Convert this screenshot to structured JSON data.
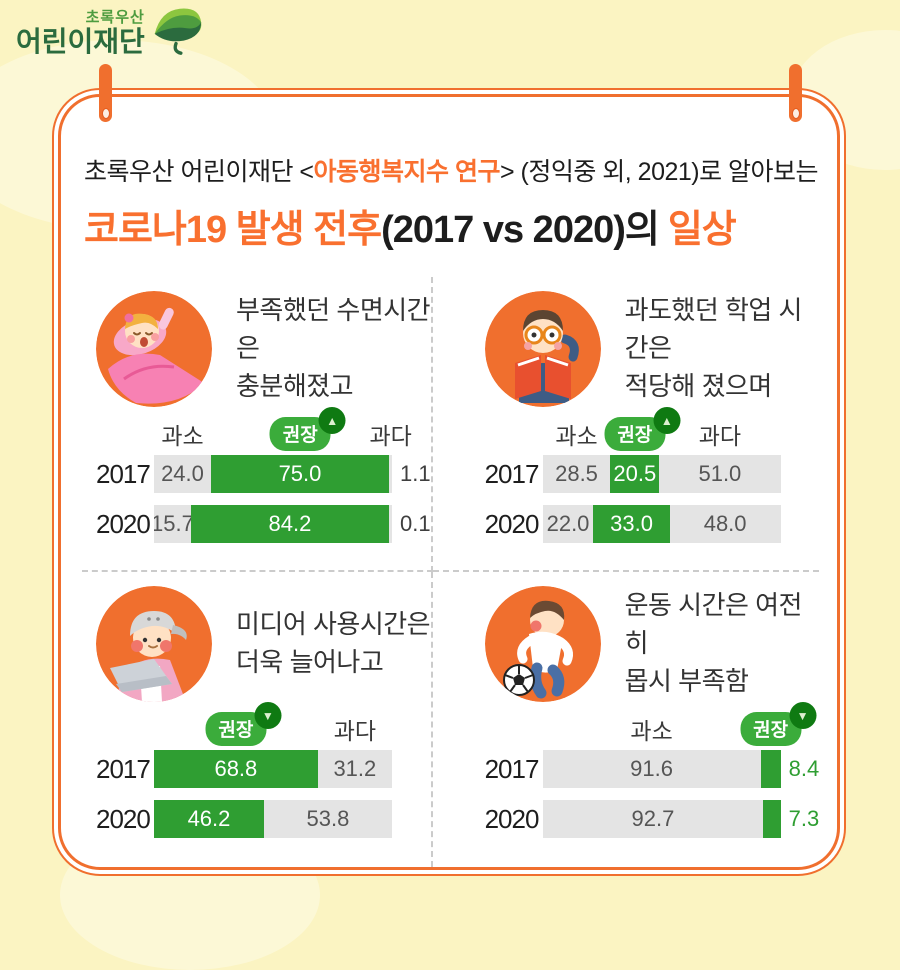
{
  "logo": {
    "line1": "초록우산",
    "line2": "어린이재단",
    "icon": "green-umbrella-leaf-icon"
  },
  "header": {
    "intro_prefix": "초록우산 어린이재단 <",
    "intro_highlight": "아동행복지수 연구",
    "intro_suffix": "> (정익중 외, 2021)로 알아보는",
    "title_part1": "코로나19 발생 전후",
    "title_part2": "(2017 vs 2020)의",
    "title_part3": "일상"
  },
  "colors": {
    "background": "#FBF4C2",
    "accent_orange": "#F06F2E",
    "title_orange": "#F9702F",
    "bar_green": "#2F9E32",
    "badge_green": "#3BAC3B",
    "badge_circle_green": "#0F7A12",
    "bar_gray": "#E4E4E4",
    "logo_green": "#4E9C3F",
    "logo_green_dark": "#2B6B3E"
  },
  "panels": [
    {
      "caption_line1": "부족했던 수면시간은",
      "caption_line2": "충분해졌고",
      "illustration": "sleeping-child-illustration"
    },
    {
      "caption_line1": "과도했던 학업 시간은",
      "caption_line2": "적당해 졌으며",
      "illustration": "reading-child-illustration"
    },
    {
      "caption_line1": "미디어 사용시간은",
      "caption_line2": "더욱 늘어나고",
      "illustration": "laptop-child-illustration"
    },
    {
      "caption_line1": "운동 시간은 여전히",
      "caption_line2": "몹시 부족함",
      "illustration": "soccer-child-illustration"
    }
  ],
  "chart_data": [
    {
      "type": "bar",
      "orientation": "horizontal-stacked",
      "title": "부족했던 수면시간은 충분해졌고",
      "unit": "%",
      "categories": [
        "2017",
        "2020"
      ],
      "series": [
        {
          "name": "과소",
          "color_role": "gray",
          "values": [
            24.0,
            15.7
          ]
        },
        {
          "name": "권장",
          "color_role": "green",
          "badge": true,
          "arrow": "up",
          "values": [
            75.0,
            84.2
          ]
        },
        {
          "name": "과다",
          "color_role": "gray",
          "values": [
            1.1,
            0.1
          ]
        }
      ]
    },
    {
      "type": "bar",
      "orientation": "horizontal-stacked",
      "title": "과도했던 학업 시간은 적당해 졌으며",
      "unit": "%",
      "categories": [
        "2017",
        "2020"
      ],
      "series": [
        {
          "name": "과소",
          "color_role": "gray",
          "values": [
            28.5,
            22.0
          ]
        },
        {
          "name": "권장",
          "color_role": "green",
          "badge": true,
          "arrow": "up",
          "values": [
            20.5,
            33.0
          ]
        },
        {
          "name": "과다",
          "color_role": "gray",
          "values": [
            51.0,
            48.0
          ]
        }
      ]
    },
    {
      "type": "bar",
      "orientation": "horizontal-stacked",
      "title": "미디어 사용시간은 더욱 늘어나고",
      "unit": "%",
      "categories": [
        "2017",
        "2020"
      ],
      "series": [
        {
          "name": "권장",
          "color_role": "green",
          "badge": true,
          "arrow": "down",
          "values": [
            68.8,
            46.2
          ]
        },
        {
          "name": "과다",
          "color_role": "gray",
          "values": [
            31.2,
            53.8
          ]
        }
      ]
    },
    {
      "type": "bar",
      "orientation": "horizontal-stacked",
      "title": "운동 시간은 여전히 몹시 부족함",
      "unit": "%",
      "categories": [
        "2017",
        "2020"
      ],
      "series": [
        {
          "name": "과소",
          "color_role": "gray",
          "values": [
            91.6,
            92.7
          ]
        },
        {
          "name": "권장",
          "color_role": "green",
          "badge": true,
          "arrow": "down",
          "values": [
            8.4,
            7.3
          ]
        }
      ]
    }
  ]
}
